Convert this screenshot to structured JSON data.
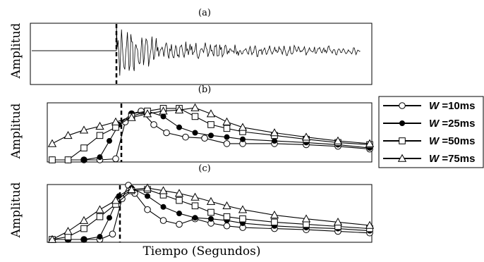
{
  "figure": {
    "xlabel": "Tiempo (Segundos)",
    "legend_title_sym": "W"
  },
  "chart_data": [
    {
      "type": "line",
      "panel_label": "(a)",
      "ylabel": "Amplitud",
      "description_values": "seismic waveform: flat trace, onset marked by dashed line, then decaying oscillations",
      "onset_fraction": 0.21,
      "signal_end_fraction": 0.95
    },
    {
      "type": "line",
      "panel_label": "(b)",
      "ylabel": "Amplitud",
      "onset_fraction": 0.23,
      "legend_position": "right",
      "series": [
        {
          "name": "=10ms",
          "marker": "circle",
          "x": [
            0,
            0.05,
            0.1,
            0.15,
            0.2,
            0.23,
            0.25,
            0.28,
            0.32,
            0.36,
            0.42,
            0.48,
            0.55,
            0.6,
            0.7,
            0.8,
            0.9,
            1.0
          ],
          "y": [
            0.0,
            0.0,
            0.0,
            0.0,
            0.02,
            0.7,
            0.85,
            0.9,
            0.65,
            0.5,
            0.42,
            0.4,
            0.3,
            0.3,
            0.3,
            0.28,
            0.25,
            0.2
          ]
        },
        {
          "name": "=25ms",
          "marker": "filled-circle",
          "x": [
            0,
            0.05,
            0.1,
            0.15,
            0.18,
            0.21,
            0.25,
            0.3,
            0.35,
            0.4,
            0.45,
            0.5,
            0.55,
            0.6,
            0.7,
            0.8,
            0.9,
            1.0
          ],
          "y": [
            0.0,
            0.0,
            0.0,
            0.05,
            0.35,
            0.65,
            0.85,
            0.9,
            0.8,
            0.6,
            0.5,
            0.45,
            0.42,
            0.38,
            0.35,
            0.32,
            0.28,
            0.22
          ]
        },
        {
          "name": "=50ms",
          "marker": "square",
          "x": [
            0,
            0.05,
            0.1,
            0.15,
            0.2,
            0.25,
            0.3,
            0.35,
            0.4,
            0.45,
            0.5,
            0.55,
            0.6,
            0.7,
            0.8,
            0.9,
            1.0
          ],
          "y": [
            0.0,
            0.0,
            0.22,
            0.45,
            0.6,
            0.8,
            0.9,
            0.95,
            0.95,
            0.8,
            0.65,
            0.58,
            0.52,
            0.45,
            0.38,
            0.32,
            0.28
          ]
        },
        {
          "name": "=75ms",
          "marker": "triangle",
          "x": [
            0,
            0.05,
            0.1,
            0.15,
            0.2,
            0.25,
            0.3,
            0.35,
            0.4,
            0.45,
            0.5,
            0.55,
            0.6,
            0.7,
            0.8,
            0.9,
            1.0
          ],
          "y": [
            0.3,
            0.45,
            0.55,
            0.62,
            0.7,
            0.78,
            0.85,
            0.9,
            0.92,
            0.96,
            0.85,
            0.7,
            0.6,
            0.5,
            0.42,
            0.35,
            0.3
          ]
        }
      ]
    },
    {
      "type": "line",
      "panel_label": "(c)",
      "ylabel": "Amplitud",
      "onset_fraction": 0.22,
      "series": [
        {
          "name": "=10ms",
          "marker": "circle",
          "x": [
            0,
            0.05,
            0.1,
            0.15,
            0.19,
            0.22,
            0.24,
            0.26,
            0.3,
            0.35,
            0.4,
            0.45,
            0.5,
            0.55,
            0.6,
            0.7,
            0.8,
            0.9,
            1.0
          ],
          "y": [
            0.0,
            0.0,
            0.0,
            0.0,
            0.1,
            0.75,
            1.0,
            0.85,
            0.55,
            0.35,
            0.28,
            0.38,
            0.3,
            0.25,
            0.22,
            0.2,
            0.18,
            0.15,
            0.12
          ]
        },
        {
          "name": "=25ms",
          "marker": "filled-circle",
          "x": [
            0,
            0.05,
            0.1,
            0.15,
            0.18,
            0.21,
            0.25,
            0.3,
            0.35,
            0.4,
            0.45,
            0.5,
            0.55,
            0.6,
            0.7,
            0.8,
            0.9,
            1.0
          ],
          "y": [
            0.0,
            0.0,
            0.0,
            0.05,
            0.4,
            0.8,
            0.95,
            0.8,
            0.6,
            0.48,
            0.4,
            0.38,
            0.35,
            0.3,
            0.25,
            0.22,
            0.2,
            0.16
          ]
        },
        {
          "name": "=50ms",
          "marker": "square",
          "x": [
            0,
            0.05,
            0.1,
            0.15,
            0.2,
            0.25,
            0.3,
            0.35,
            0.4,
            0.45,
            0.5,
            0.55,
            0.6,
            0.7,
            0.8,
            0.9,
            1.0
          ],
          "y": [
            0.0,
            0.05,
            0.2,
            0.42,
            0.65,
            0.9,
            0.92,
            0.82,
            0.72,
            0.62,
            0.5,
            0.42,
            0.38,
            0.32,
            0.28,
            0.24,
            0.2
          ]
        },
        {
          "name": "=75ms",
          "marker": "triangle",
          "x": [
            0,
            0.05,
            0.1,
            0.15,
            0.2,
            0.25,
            0.3,
            0.35,
            0.4,
            0.45,
            0.5,
            0.55,
            0.6,
            0.7,
            0.8,
            0.9,
            1.0
          ],
          "y": [
            0.0,
            0.15,
            0.35,
            0.55,
            0.72,
            0.92,
            0.95,
            0.9,
            0.85,
            0.78,
            0.7,
            0.62,
            0.55,
            0.45,
            0.38,
            0.32,
            0.26
          ]
        }
      ]
    }
  ]
}
